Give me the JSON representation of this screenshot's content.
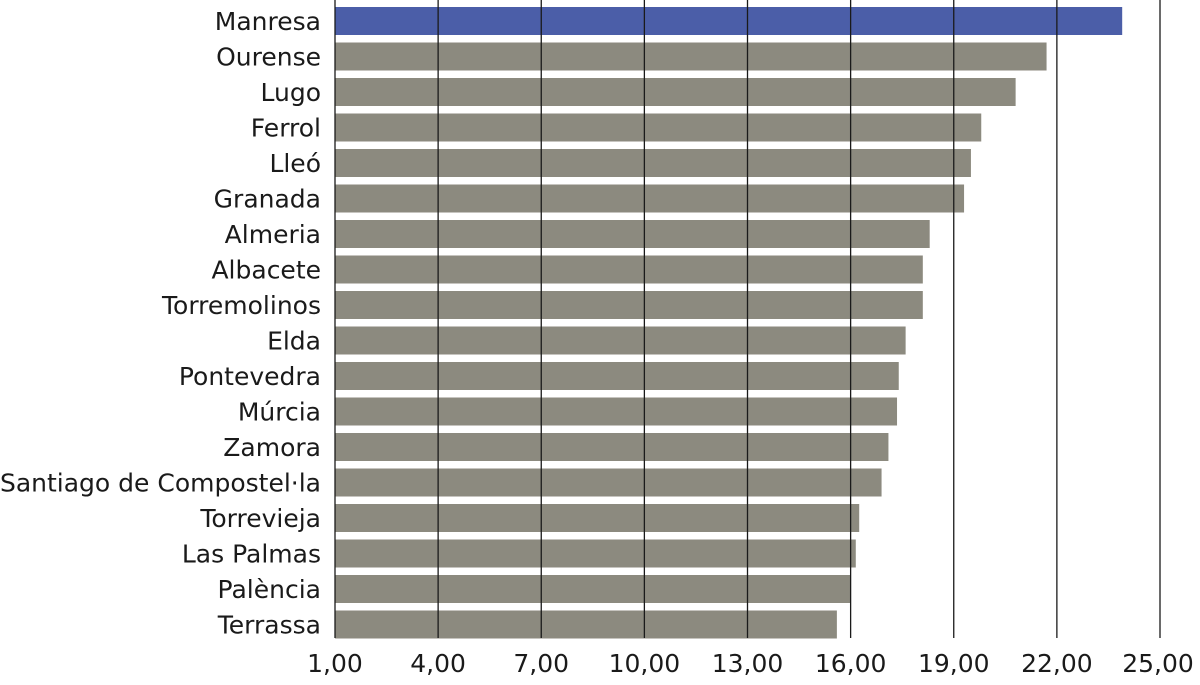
{
  "chart_data": {
    "type": "bar",
    "orientation": "horizontal",
    "categories": [
      "Manresa",
      "Ourense",
      "Lugo",
      "Ferrol",
      "Lleó",
      "Granada",
      "Almeria",
      "Albacete",
      "Torremolinos",
      "Elda",
      "Pontevedra",
      "Múrcia",
      "Zamora",
      "Santiago de Compostel·la",
      "Torrevieja",
      "Las Palmas",
      "Palència",
      "Terrassa"
    ],
    "values": [
      23.9,
      21.7,
      20.8,
      19.8,
      19.5,
      19.3,
      18.3,
      18.1,
      18.1,
      17.6,
      17.4,
      17.35,
      17.1,
      16.9,
      16.25,
      16.15,
      16.0,
      15.6
    ],
    "xlim": [
      1,
      25
    ],
    "xticks": [
      "1,00",
      "4,00",
      "7,00",
      "10,00",
      "13,00",
      "16,00",
      "19,00",
      "22,00",
      "25,00"
    ],
    "grid": true,
    "highlight_category": "Manresa",
    "colors": {
      "highlight": "#4b5ea8",
      "bar": "#8c8a7f",
      "grid": "#1a1a1a",
      "text": "#1a1a1a"
    }
  }
}
